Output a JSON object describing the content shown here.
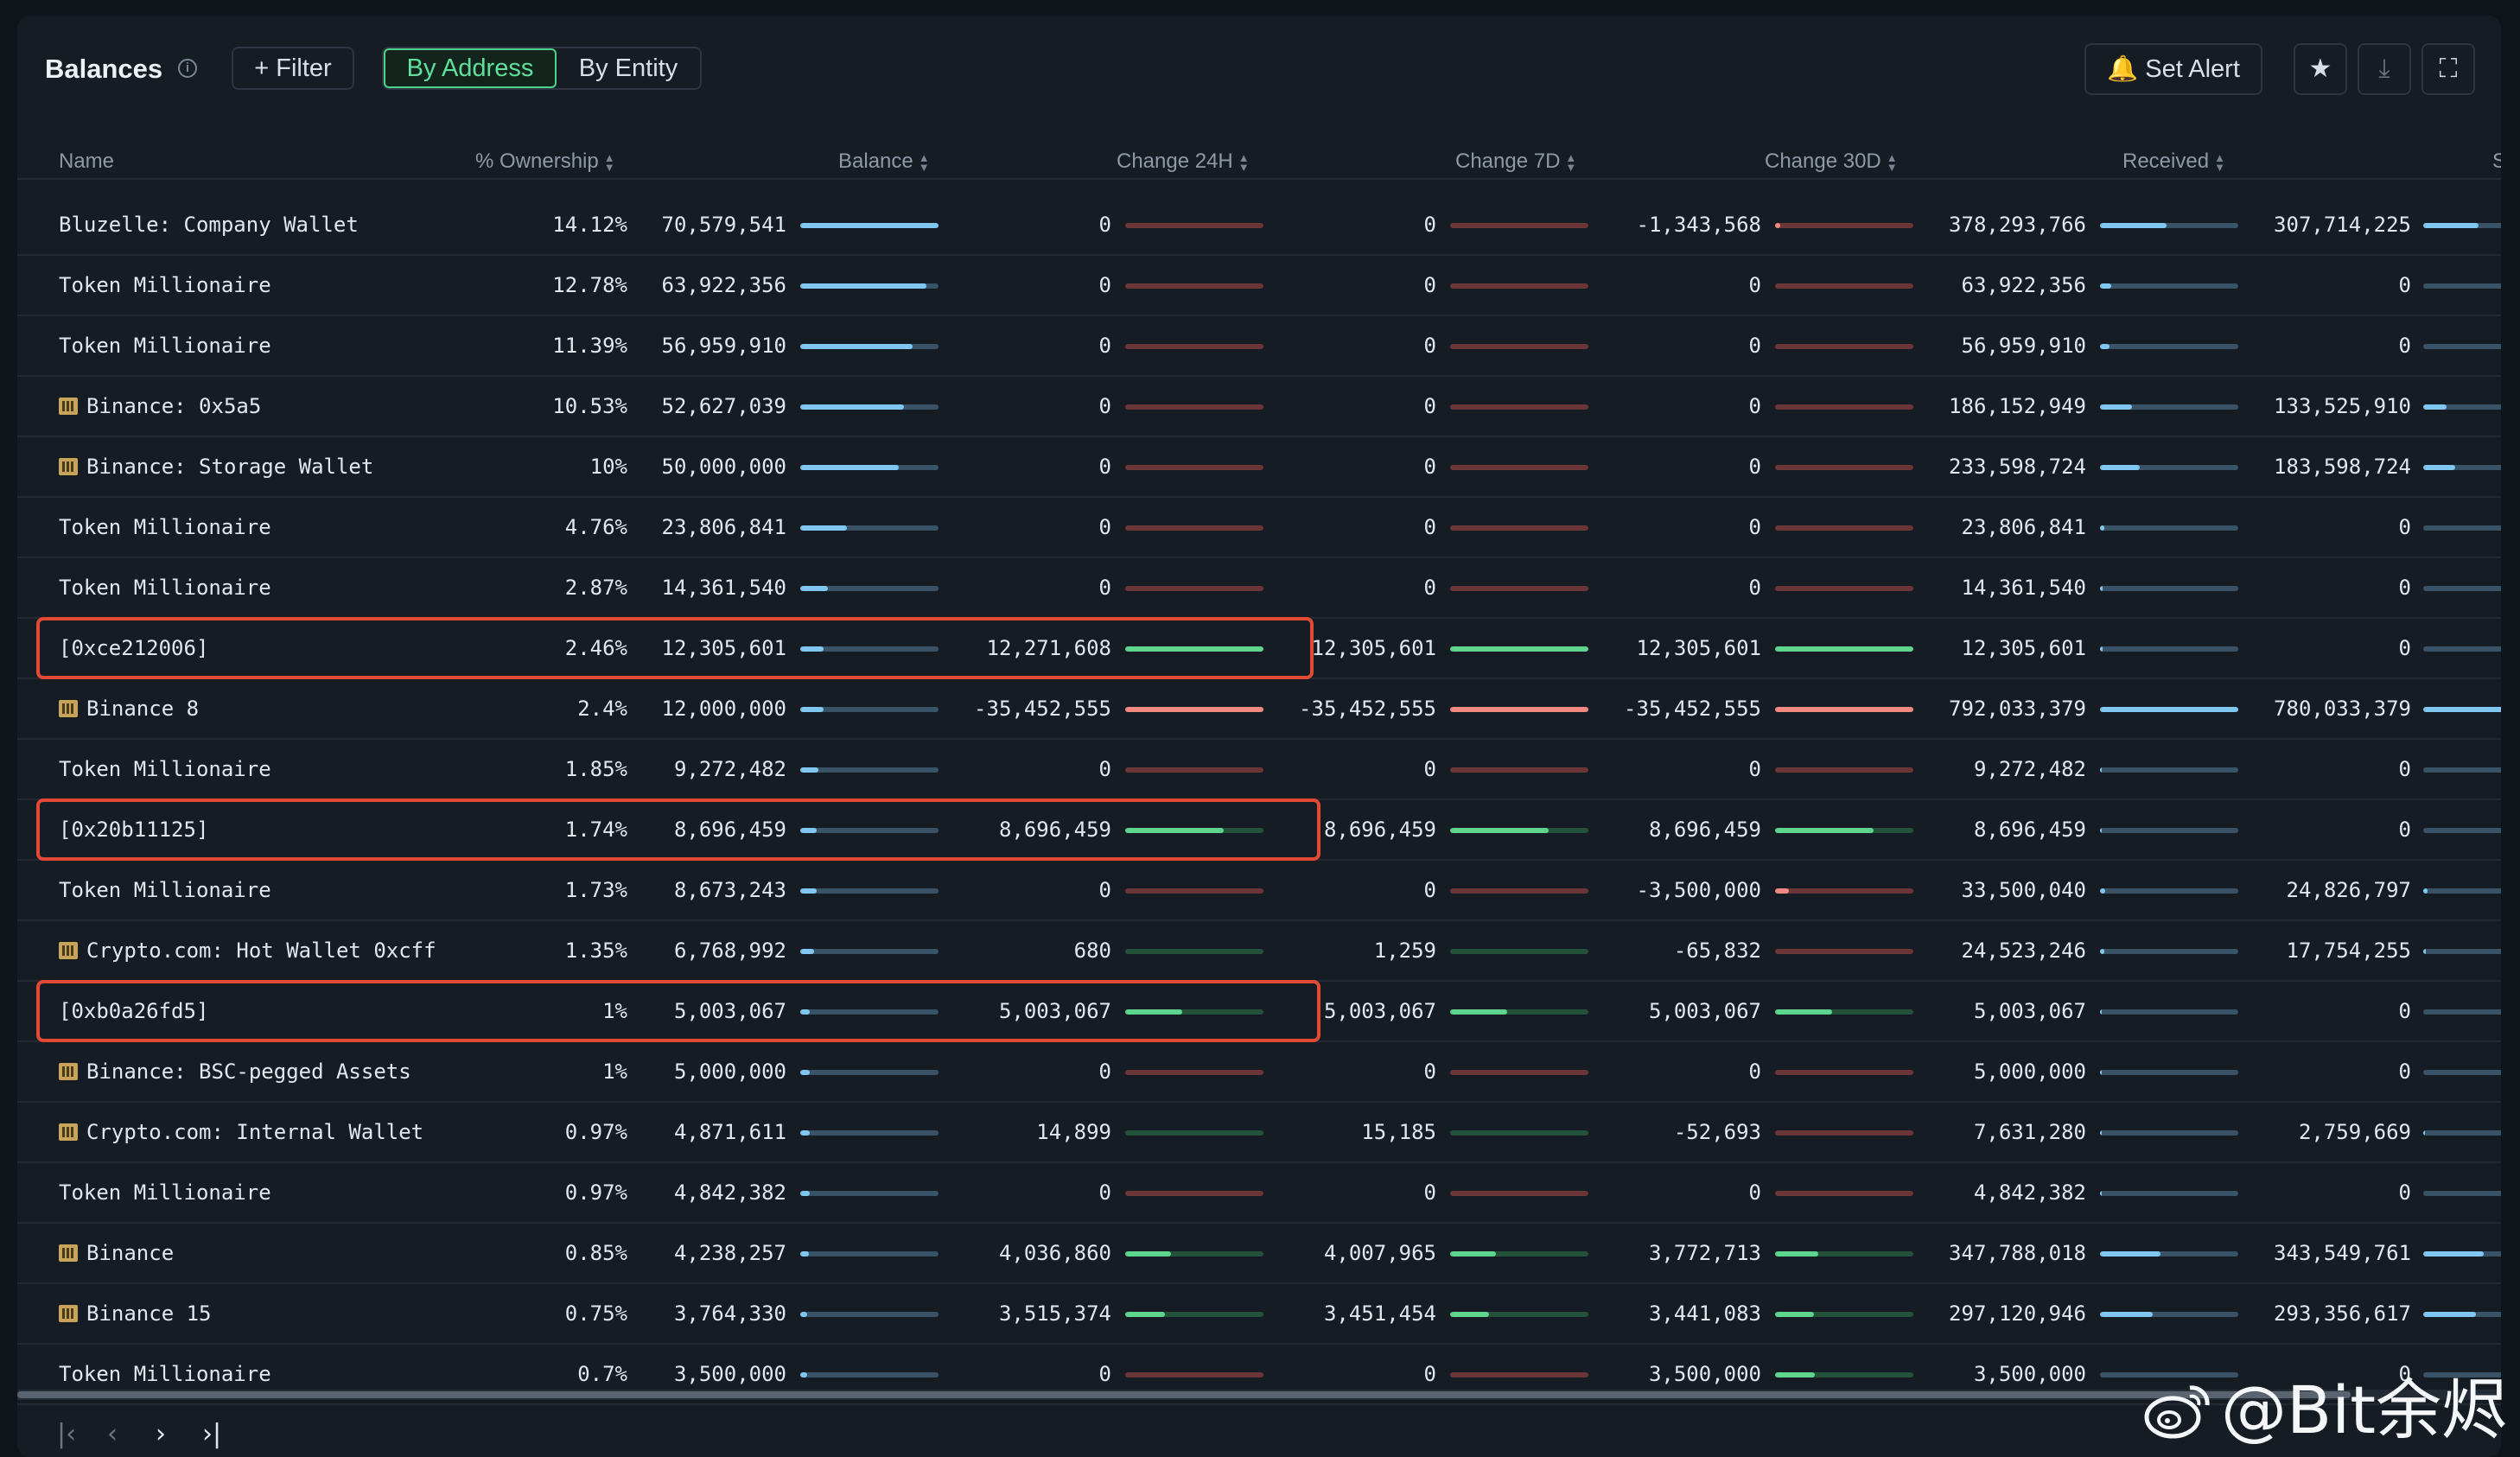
{
  "header": {
    "title": "Balances",
    "filter_label": "+ Filter",
    "seg_address": "By Address",
    "seg_entity": "By Entity",
    "alert_label": "Set Alert"
  },
  "columns": {
    "name": "Name",
    "ownership": "% Ownership",
    "balance": "Balance",
    "ch24": "Change 24H",
    "ch7": "Change 7D",
    "ch30": "Change 30D",
    "received": "Received",
    "next": "S"
  },
  "colors": {
    "positive": "#5fd48e",
    "negative": "#f08a80",
    "balance": "#7fc7f0",
    "highlight": "#e24a36"
  },
  "rows": [
    {
      "name": "Bluzelle: Company Wallet",
      "entity": false,
      "own": "14.12%",
      "bal": "70,579,541",
      "bal_f": 1.0,
      "c24": "0",
      "c24_f": 0,
      "c24_s": "r",
      "c7": "0",
      "c7_f": 0,
      "c7_s": "r",
      "c30": "-1,343,568",
      "c30_f": 0.04,
      "c30_s": "r",
      "rec": "378,293,766",
      "rec_f": 0.48,
      "sent": "307,714,225",
      "sent_f": 0.4
    },
    {
      "name": "Token Millionaire",
      "entity": false,
      "own": "12.78%",
      "bal": "63,922,356",
      "bal_f": 0.91,
      "c24": "0",
      "c24_f": 0,
      "c24_s": "r",
      "c7": "0",
      "c7_f": 0,
      "c7_s": "r",
      "c30": "0",
      "c30_f": 0,
      "c30_s": "r",
      "rec": "63,922,356",
      "rec_f": 0.08,
      "sent": "0",
      "sent_f": 0
    },
    {
      "name": "Token Millionaire",
      "entity": false,
      "own": "11.39%",
      "bal": "56,959,910",
      "bal_f": 0.81,
      "c24": "0",
      "c24_f": 0,
      "c24_s": "r",
      "c7": "0",
      "c7_f": 0,
      "c7_s": "r",
      "c30": "0",
      "c30_f": 0,
      "c30_s": "r",
      "rec": "56,959,910",
      "rec_f": 0.07,
      "sent": "0",
      "sent_f": 0
    },
    {
      "name": "Binance: 0x5a5",
      "entity": true,
      "own": "10.53%",
      "bal": "52,627,039",
      "bal_f": 0.75,
      "c24": "0",
      "c24_f": 0,
      "c24_s": "r",
      "c7": "0",
      "c7_f": 0,
      "c7_s": "r",
      "c30": "0",
      "c30_f": 0,
      "c30_s": "r",
      "rec": "186,152,949",
      "rec_f": 0.23,
      "sent": "133,525,910",
      "sent_f": 0.17
    },
    {
      "name": "Binance: Storage Wallet",
      "entity": true,
      "own": "10%",
      "bal": "50,000,000",
      "bal_f": 0.71,
      "c24": "0",
      "c24_f": 0,
      "c24_s": "r",
      "c7": "0",
      "c7_f": 0,
      "c7_s": "r",
      "c30": "0",
      "c30_f": 0,
      "c30_s": "r",
      "rec": "233,598,724",
      "rec_f": 0.29,
      "sent": "183,598,724",
      "sent_f": 0.23
    },
    {
      "name": "Token Millionaire",
      "entity": false,
      "own": "4.76%",
      "bal": "23,806,841",
      "bal_f": 0.34,
      "c24": "0",
      "c24_f": 0,
      "c24_s": "r",
      "c7": "0",
      "c7_f": 0,
      "c7_s": "r",
      "c30": "0",
      "c30_f": 0,
      "c30_s": "r",
      "rec": "23,806,841",
      "rec_f": 0.03,
      "sent": "0",
      "sent_f": 0
    },
    {
      "name": "Token Millionaire",
      "entity": false,
      "own": "2.87%",
      "bal": "14,361,540",
      "bal_f": 0.2,
      "c24": "0",
      "c24_f": 0,
      "c24_s": "r",
      "c7": "0",
      "c7_f": 0,
      "c7_s": "r",
      "c30": "0",
      "c30_f": 0,
      "c30_s": "r",
      "rec": "14,361,540",
      "rec_f": 0.02,
      "sent": "0",
      "sent_f": 0
    },
    {
      "name": "[0xce212006]",
      "entity": false,
      "hl": true,
      "own": "2.46%",
      "bal": "12,305,601",
      "bal_f": 0.17,
      "c24": "12,271,608",
      "c24_f": 1.0,
      "c24_s": "g",
      "c7": "12,305,601",
      "c7_f": 1.0,
      "c7_s": "g",
      "c30": "12,305,601",
      "c30_f": 1.0,
      "c30_s": "g",
      "rec": "12,305,601",
      "rec_f": 0.02,
      "sent": "0",
      "sent_f": 0
    },
    {
      "name": "Binance 8",
      "entity": true,
      "own": "2.4%",
      "bal": "12,000,000",
      "bal_f": 0.17,
      "c24": "-35,452,555",
      "c24_f": 1.0,
      "c24_s": "r",
      "c7": "-35,452,555",
      "c7_f": 1.0,
      "c7_s": "r",
      "c30": "-35,452,555",
      "c30_f": 1.0,
      "c30_s": "r",
      "rec": "792,033,379",
      "rec_f": 1.0,
      "sent": "780,033,379",
      "sent_f": 1.0
    },
    {
      "name": "Token Millionaire",
      "entity": false,
      "own": "1.85%",
      "bal": "9,272,482",
      "bal_f": 0.13,
      "c24": "0",
      "c24_f": 0,
      "c24_s": "r",
      "c7": "0",
      "c7_f": 0,
      "c7_s": "r",
      "c30": "0",
      "c30_f": 0,
      "c30_s": "r",
      "rec": "9,272,482",
      "rec_f": 0.01,
      "sent": "0",
      "sent_f": 0
    },
    {
      "name": "[0x20b11125]",
      "entity": false,
      "hl": true,
      "own": "1.74%",
      "bal": "8,696,459",
      "bal_f": 0.12,
      "c24": "8,696,459",
      "c24_f": 0.71,
      "c24_s": "g",
      "c7": "8,696,459",
      "c7_f": 0.71,
      "c7_s": "g",
      "c30": "8,696,459",
      "c30_f": 0.71,
      "c30_s": "g",
      "rec": "8,696,459",
      "rec_f": 0.01,
      "sent": "0",
      "sent_f": 0
    },
    {
      "name": "Token Millionaire",
      "entity": false,
      "own": "1.73%",
      "bal": "8,673,243",
      "bal_f": 0.12,
      "c24": "0",
      "c24_f": 0,
      "c24_s": "r",
      "c7": "0",
      "c7_f": 0,
      "c7_s": "r",
      "c30": "-3,500,000",
      "c30_f": 0.1,
      "c30_s": "r",
      "rec": "33,500,040",
      "rec_f": 0.04,
      "sent": "24,826,797",
      "sent_f": 0.03
    },
    {
      "name": "Crypto.com: Hot Wallet 0xcff",
      "entity": true,
      "own": "1.35%",
      "bal": "6,768,992",
      "bal_f": 0.1,
      "c24": "680",
      "c24_f": 0,
      "c24_s": "g",
      "c7": "1,259",
      "c7_f": 0,
      "c7_s": "g",
      "c30": "-65,832",
      "c30_f": 0,
      "c30_s": "r",
      "rec": "24,523,246",
      "rec_f": 0.03,
      "sent": "17,754,255",
      "sent_f": 0.02
    },
    {
      "name": "[0xb0a26fd5]",
      "entity": false,
      "hl": true,
      "own": "1%",
      "bal": "5,003,067",
      "bal_f": 0.07,
      "c24": "5,003,067",
      "c24_f": 0.41,
      "c24_s": "g",
      "c7": "5,003,067",
      "c7_f": 0.41,
      "c7_s": "g",
      "c30": "5,003,067",
      "c30_f": 0.41,
      "c30_s": "g",
      "rec": "5,003,067",
      "rec_f": 0.01,
      "sent": "0",
      "sent_f": 0
    },
    {
      "name": "Binance: BSC-pegged Assets",
      "entity": true,
      "own": "1%",
      "bal": "5,000,000",
      "bal_f": 0.07,
      "c24": "0",
      "c24_f": 0,
      "c24_s": "r",
      "c7": "0",
      "c7_f": 0,
      "c7_s": "r",
      "c30": "0",
      "c30_f": 0,
      "c30_s": "r",
      "rec": "5,000,000",
      "rec_f": 0.01,
      "sent": "0",
      "sent_f": 0
    },
    {
      "name": "Crypto.com: Internal Wallet",
      "entity": true,
      "own": "0.97%",
      "bal": "4,871,611",
      "bal_f": 0.07,
      "c24": "14,899",
      "c24_f": 0,
      "c24_s": "g",
      "c7": "15,185",
      "c7_f": 0,
      "c7_s": "g",
      "c30": "-52,693",
      "c30_f": 0,
      "c30_s": "r",
      "rec": "7,631,280",
      "rec_f": 0.01,
      "sent": "2,759,669",
      "sent_f": 0.01
    },
    {
      "name": "Token Millionaire",
      "entity": false,
      "own": "0.97%",
      "bal": "4,842,382",
      "bal_f": 0.07,
      "c24": "0",
      "c24_f": 0,
      "c24_s": "r",
      "c7": "0",
      "c7_f": 0,
      "c7_s": "r",
      "c30": "0",
      "c30_f": 0,
      "c30_s": "r",
      "rec": "4,842,382",
      "rec_f": 0.01,
      "sent": "0",
      "sent_f": 0
    },
    {
      "name": "Binance",
      "entity": true,
      "own": "0.85%",
      "bal": "4,238,257",
      "bal_f": 0.06,
      "c24": "4,036,860",
      "c24_f": 0.33,
      "c24_s": "g",
      "c7": "4,007,965",
      "c7_f": 0.33,
      "c7_s": "g",
      "c30": "3,772,713",
      "c30_f": 0.31,
      "c30_s": "g",
      "rec": "347,788,018",
      "rec_f": 0.44,
      "sent": "343,549,761",
      "sent_f": 0.44
    },
    {
      "name": "Binance 15",
      "entity": true,
      "own": "0.75%",
      "bal": "3,764,330",
      "bal_f": 0.05,
      "c24": "3,515,374",
      "c24_f": 0.29,
      "c24_s": "g",
      "c7": "3,451,454",
      "c7_f": 0.28,
      "c7_s": "g",
      "c30": "3,441,083",
      "c30_f": 0.28,
      "c30_s": "g",
      "rec": "297,120,946",
      "rec_f": 0.38,
      "sent": "293,356,617",
      "sent_f": 0.38
    },
    {
      "name": "Token Millionaire",
      "entity": false,
      "own": "0.7%",
      "bal": "3,500,000",
      "bal_f": 0.05,
      "c24": "0",
      "c24_f": 0,
      "c24_s": "r",
      "c7": "0",
      "c7_f": 0,
      "c7_s": "r",
      "c30": "3,500,000",
      "c30_f": 0.29,
      "c30_s": "g",
      "rec": "3,500,000",
      "rec_f": 0.0,
      "sent": "0",
      "sent_f": 0
    }
  ],
  "pager": {
    "first": "|‹",
    "prev": "‹",
    "next": "›",
    "last": "›|"
  },
  "watermark": "@Bit余烬"
}
